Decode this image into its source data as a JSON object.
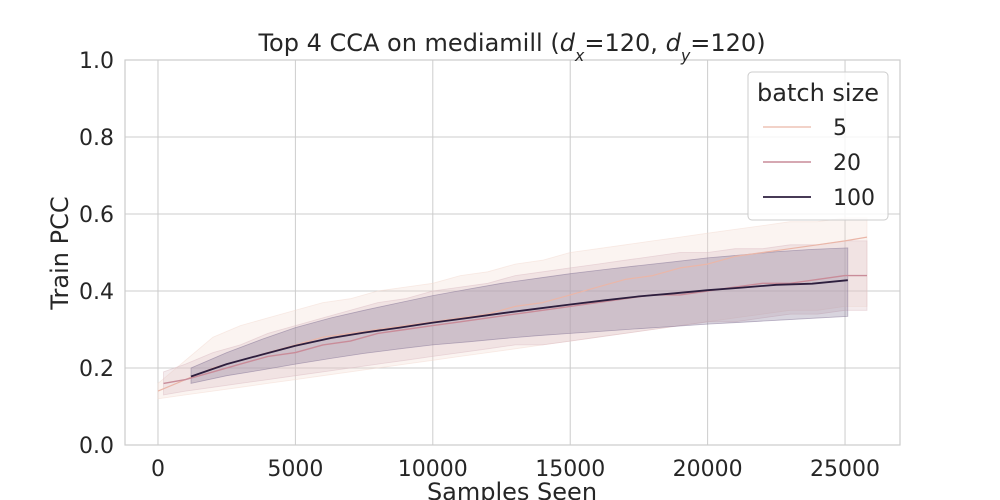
{
  "chart_data": {
    "type": "line",
    "title_pre": "Top 4 CCA on mediamill (",
    "title_dx_var": "d",
    "title_dx_sub": "x",
    "title_mid": "=120, ",
    "title_dy_var": "d",
    "title_dy_sub": "y",
    "title_post": "=120)",
    "xlabel": "Samples Seen",
    "ylabel": "Train PCC",
    "xlim": [
      -1200,
      27000
    ],
    "ylim": [
      0.0,
      1.0
    ],
    "xticks": [
      0,
      5000,
      10000,
      15000,
      20000,
      25000
    ],
    "yticks": [
      0.0,
      0.2,
      0.4,
      0.6,
      0.8,
      1.0
    ],
    "xtick_labels": [
      "0",
      "5000",
      "10000",
      "15000",
      "20000",
      "25000"
    ],
    "ytick_labels": [
      "0.0",
      "0.2",
      "0.4",
      "0.6",
      "0.8",
      "1.0"
    ],
    "grid": true,
    "legend_title": "batch size",
    "legend_position": "top-right",
    "series": [
      {
        "name": "5",
        "color": "#eab6a8",
        "band_color": "#f3d9d0",
        "band_opacity": 0.3,
        "line_width": 1.2,
        "x": [
          0,
          1000,
          2000,
          3000,
          4000,
          5000,
          6000,
          7000,
          8000,
          9000,
          10000,
          11000,
          12000,
          13000,
          14000,
          15000,
          16000,
          17000,
          18000,
          19000,
          20000,
          21000,
          22000,
          23000,
          24000,
          25000,
          25800
        ],
        "y": [
          0.14,
          0.17,
          0.2,
          0.22,
          0.24,
          0.26,
          0.28,
          0.29,
          0.3,
          0.31,
          0.32,
          0.33,
          0.34,
          0.36,
          0.37,
          0.39,
          0.41,
          0.43,
          0.44,
          0.46,
          0.47,
          0.49,
          0.5,
          0.51,
          0.52,
          0.53,
          0.54
        ],
        "lower": [
          0.12,
          0.13,
          0.14,
          0.15,
          0.16,
          0.17,
          0.18,
          0.19,
          0.2,
          0.21,
          0.22,
          0.23,
          0.24,
          0.25,
          0.26,
          0.27,
          0.28,
          0.29,
          0.3,
          0.31,
          0.32,
          0.33,
          0.34,
          0.35,
          0.35,
          0.36,
          0.36
        ],
        "upper": [
          0.16,
          0.22,
          0.28,
          0.31,
          0.33,
          0.35,
          0.37,
          0.38,
          0.4,
          0.41,
          0.42,
          0.44,
          0.45,
          0.47,
          0.48,
          0.5,
          0.51,
          0.52,
          0.53,
          0.54,
          0.55,
          0.56,
          0.57,
          0.58,
          0.58,
          0.59,
          0.59
        ]
      },
      {
        "name": "20",
        "color": "#c98c99",
        "band_color": "#dcbcc4",
        "band_opacity": 0.3,
        "line_width": 1.4,
        "x": [
          200,
          1000,
          2000,
          3000,
          4000,
          5000,
          6000,
          7000,
          8000,
          9000,
          10000,
          11000,
          12000,
          13000,
          14000,
          15000,
          16000,
          17000,
          18000,
          19000,
          20000,
          21000,
          22000,
          23000,
          24000,
          25000,
          25800
        ],
        "y": [
          0.16,
          0.17,
          0.19,
          0.21,
          0.23,
          0.24,
          0.26,
          0.27,
          0.29,
          0.3,
          0.31,
          0.32,
          0.33,
          0.34,
          0.35,
          0.36,
          0.37,
          0.38,
          0.39,
          0.39,
          0.4,
          0.41,
          0.42,
          0.42,
          0.43,
          0.44,
          0.44
        ],
        "lower": [
          0.13,
          0.14,
          0.15,
          0.16,
          0.17,
          0.18,
          0.19,
          0.2,
          0.21,
          0.22,
          0.23,
          0.24,
          0.25,
          0.26,
          0.26,
          0.27,
          0.28,
          0.29,
          0.3,
          0.31,
          0.32,
          0.32,
          0.33,
          0.34,
          0.34,
          0.35,
          0.35
        ],
        "upper": [
          0.19,
          0.21,
          0.24,
          0.26,
          0.29,
          0.31,
          0.33,
          0.35,
          0.37,
          0.38,
          0.4,
          0.41,
          0.42,
          0.44,
          0.45,
          0.46,
          0.47,
          0.48,
          0.49,
          0.5,
          0.5,
          0.51,
          0.51,
          0.52,
          0.52,
          0.53,
          0.53
        ]
      },
      {
        "name": "100",
        "color": "#2d1e3e",
        "band_color": "#7f6f93",
        "band_opacity": 0.3,
        "line_width": 1.8,
        "x": [
          1200,
          2500,
          3800,
          5000,
          6300,
          7500,
          8800,
          10000,
          11300,
          12500,
          13800,
          15000,
          16300,
          17500,
          18800,
          20000,
          21300,
          22500,
          23800,
          25100
        ],
        "y": [
          0.178,
          0.21,
          0.235,
          0.258,
          0.278,
          0.292,
          0.305,
          0.318,
          0.33,
          0.342,
          0.354,
          0.365,
          0.376,
          0.386,
          0.394,
          0.402,
          0.409,
          0.416,
          0.419,
          0.428
        ],
        "lower": [
          0.16,
          0.18,
          0.195,
          0.21,
          0.225,
          0.238,
          0.25,
          0.26,
          0.268,
          0.276,
          0.284,
          0.29,
          0.296,
          0.302,
          0.308,
          0.314,
          0.319,
          0.324,
          0.329,
          0.334
        ],
        "upper": [
          0.2,
          0.24,
          0.275,
          0.305,
          0.33,
          0.35,
          0.37,
          0.388,
          0.405,
          0.42,
          0.433,
          0.445,
          0.456,
          0.466,
          0.476,
          0.486,
          0.494,
          0.502,
          0.508,
          0.512
        ]
      }
    ]
  }
}
